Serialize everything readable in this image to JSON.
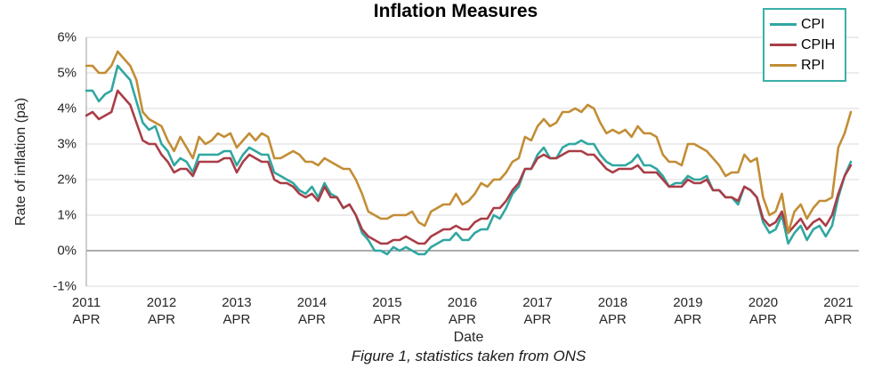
{
  "title": "Inflation Measures",
  "caption": "Figure 1, statistics taken from ONS",
  "axes": {
    "x_label": "Date",
    "y_label": "Rate of inflation (pa)",
    "y_tick_labels": [
      "6%",
      "5%",
      "4%",
      "3%",
      "2%",
      "1%",
      "0%",
      "-1%"
    ],
    "x_tick_years": [
      "2011",
      "2012",
      "2013",
      "2014",
      "2015",
      "2016",
      "2017",
      "2018",
      "2019",
      "2020",
      "2021"
    ],
    "x_tick_month": "APR"
  },
  "legend": {
    "position": "top-right",
    "border_color": "#3ab0a8",
    "entries": [
      "CPI",
      "CPIH",
      "RPI"
    ]
  },
  "colors": {
    "background": "#ffffff",
    "grid": "#d9d9d9",
    "zero_line": "#7a7a7a",
    "axis_line": "#adadad",
    "text": "#262626"
  },
  "chart_data": {
    "type": "line",
    "title": "Inflation Measures",
    "xlabel": "Date",
    "ylabel": "Rate of inflation (pa)",
    "x_start": "2011-04",
    "x_end": "2021-06",
    "x_frequency": "monthly",
    "ylim": [
      -1,
      6
    ],
    "grid": "horizontal",
    "legend_position": "top-right",
    "series": [
      {
        "name": "CPI",
        "color": "#30a7a1",
        "values": [
          4.5,
          4.5,
          4.2,
          4.4,
          4.5,
          5.2,
          5.0,
          4.8,
          4.2,
          3.6,
          3.4,
          3.5,
          3.0,
          2.8,
          2.4,
          2.6,
          2.5,
          2.2,
          2.7,
          2.7,
          2.7,
          2.7,
          2.8,
          2.8,
          2.4,
          2.7,
          2.9,
          2.8,
          2.7,
          2.7,
          2.2,
          2.1,
          2.0,
          1.9,
          1.7,
          1.6,
          1.8,
          1.5,
          1.9,
          1.6,
          1.5,
          1.2,
          1.3,
          1.0,
          0.5,
          0.3,
          0.0,
          0.0,
          -0.1,
          0.1,
          0.0,
          0.1,
          0.0,
          -0.1,
          -0.1,
          0.1,
          0.2,
          0.3,
          0.3,
          0.5,
          0.3,
          0.3,
          0.5,
          0.6,
          0.6,
          1.0,
          0.9,
          1.2,
          1.6,
          1.8,
          2.3,
          2.3,
          2.7,
          2.9,
          2.6,
          2.6,
          2.9,
          3.0,
          3.0,
          3.1,
          3.0,
          3.0,
          2.7,
          2.5,
          2.4,
          2.4,
          2.4,
          2.5,
          2.7,
          2.4,
          2.4,
          2.3,
          2.1,
          1.8,
          1.9,
          1.9,
          2.1,
          2.0,
          2.0,
          2.1,
          1.7,
          1.7,
          1.5,
          1.5,
          1.3,
          1.8,
          1.7,
          1.5,
          0.8,
          0.5,
          0.6,
          1.0,
          0.2,
          0.5,
          0.7,
          0.3,
          0.6,
          0.7,
          0.4,
          0.7,
          1.5,
          2.1,
          2.5
        ]
      },
      {
        "name": "CPIH",
        "color": "#a93d47",
        "values": [
          3.8,
          3.9,
          3.7,
          3.8,
          3.9,
          4.5,
          4.3,
          4.1,
          3.6,
          3.1,
          3.0,
          3.0,
          2.7,
          2.5,
          2.2,
          2.3,
          2.3,
          2.1,
          2.5,
          2.5,
          2.5,
          2.5,
          2.6,
          2.6,
          2.2,
          2.5,
          2.7,
          2.6,
          2.5,
          2.5,
          2.0,
          1.9,
          1.9,
          1.8,
          1.6,
          1.5,
          1.6,
          1.4,
          1.8,
          1.5,
          1.5,
          1.2,
          1.3,
          1.0,
          0.6,
          0.4,
          0.3,
          0.2,
          0.2,
          0.3,
          0.3,
          0.4,
          0.3,
          0.2,
          0.2,
          0.4,
          0.5,
          0.6,
          0.6,
          0.7,
          0.6,
          0.6,
          0.8,
          0.9,
          0.9,
          1.2,
          1.2,
          1.4,
          1.7,
          1.9,
          2.3,
          2.3,
          2.6,
          2.7,
          2.6,
          2.6,
          2.7,
          2.8,
          2.8,
          2.8,
          2.7,
          2.7,
          2.5,
          2.3,
          2.2,
          2.3,
          2.3,
          2.3,
          2.4,
          2.2,
          2.2,
          2.2,
          2.0,
          1.8,
          1.8,
          1.8,
          2.0,
          1.9,
          1.9,
          2.0,
          1.7,
          1.7,
          1.5,
          1.5,
          1.4,
          1.8,
          1.7,
          1.5,
          0.9,
          0.7,
          0.8,
          1.1,
          0.5,
          0.7,
          0.9,
          0.6,
          0.8,
          0.9,
          0.7,
          1.0,
          1.6,
          2.1,
          2.4
        ]
      },
      {
        "name": "RPI",
        "color": "#c38d35",
        "values": [
          5.2,
          5.2,
          5.0,
          5.0,
          5.2,
          5.6,
          5.4,
          5.2,
          4.8,
          3.9,
          3.7,
          3.6,
          3.5,
          3.1,
          2.8,
          3.2,
          2.9,
          2.6,
          3.2,
          3.0,
          3.1,
          3.3,
          3.2,
          3.3,
          2.9,
          3.1,
          3.3,
          3.1,
          3.3,
          3.2,
          2.6,
          2.6,
          2.7,
          2.8,
          2.7,
          2.5,
          2.5,
          2.4,
          2.6,
          2.5,
          2.4,
          2.3,
          2.3,
          2.0,
          1.6,
          1.1,
          1.0,
          0.9,
          0.9,
          1.0,
          1.0,
          1.0,
          1.1,
          0.8,
          0.7,
          1.1,
          1.2,
          1.3,
          1.3,
          1.6,
          1.3,
          1.4,
          1.6,
          1.9,
          1.8,
          2.0,
          2.0,
          2.2,
          2.5,
          2.6,
          3.2,
          3.1,
          3.5,
          3.7,
          3.5,
          3.6,
          3.9,
          3.9,
          4.0,
          3.9,
          4.1,
          4.0,
          3.6,
          3.3,
          3.4,
          3.3,
          3.4,
          3.2,
          3.5,
          3.3,
          3.3,
          3.2,
          2.7,
          2.5,
          2.5,
          2.4,
          3.0,
          3.0,
          2.9,
          2.8,
          2.6,
          2.4,
          2.1,
          2.2,
          2.2,
          2.7,
          2.5,
          2.6,
          1.5,
          1.0,
          1.1,
          1.6,
          0.5,
          1.1,
          1.3,
          0.9,
          1.2,
          1.4,
          1.4,
          1.5,
          2.9,
          3.3,
          3.9
        ]
      }
    ]
  }
}
